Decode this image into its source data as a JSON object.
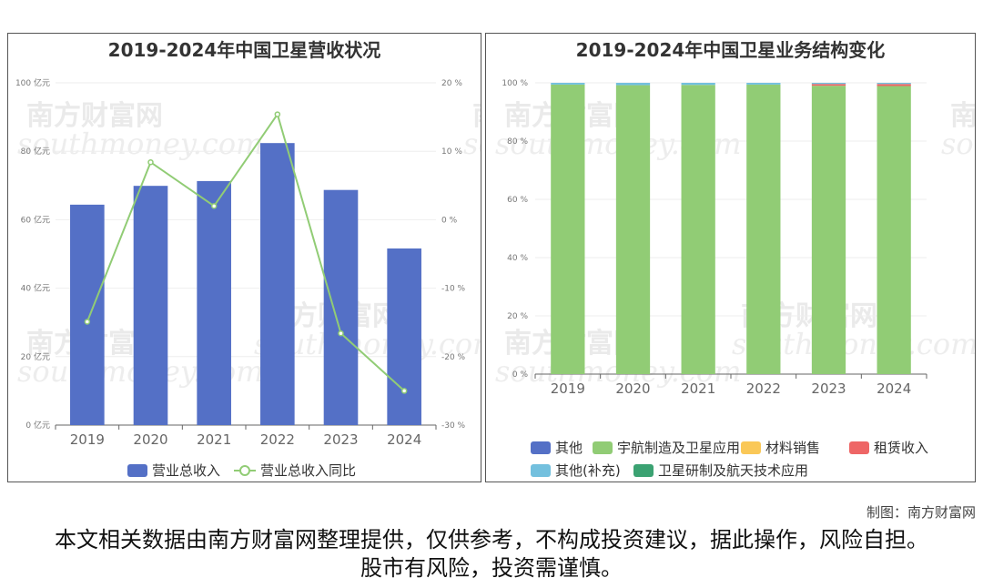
{
  "charts": {
    "left": {
      "title": "2019-2024年中国卫星营收状况",
      "left_ticks": [
        "0 亿元",
        "20 亿元",
        "40 亿元",
        "60 亿元",
        "80 亿元",
        "100 亿元"
      ],
      "right_ticks": [
        "-30 %",
        "-20 %",
        "-10 %",
        "0 %",
        "10 %",
        "20 %"
      ],
      "legend": [
        "营业总收入",
        "营业总收入同比"
      ]
    },
    "right": {
      "title": "2019-2024年中国卫星业务结构变化",
      "y_ticks": [
        "0 %",
        "20 %",
        "40 %",
        "60 %",
        "80 %",
        "100 %"
      ],
      "legend": [
        "其他",
        "宇航制造及卫星应用",
        "材料销售",
        "租赁收入",
        "其他(补充)",
        "卫星研制及航天技术应用"
      ]
    }
  },
  "chart_data": [
    {
      "type": "bar",
      "title": "2019-2024年中国卫星营收状况",
      "categories": [
        "2019",
        "2020",
        "2021",
        "2022",
        "2023",
        "2024"
      ],
      "series": [
        {
          "name": "营业总收入",
          "type": "bar",
          "axis": "left",
          "unit": "亿元",
          "values": [
            64.4,
            69.9,
            71.3,
            82.4,
            68.7,
            51.6
          ],
          "color": "#5470c6"
        },
        {
          "name": "营业总收入同比",
          "type": "line",
          "axis": "right",
          "unit": "%",
          "values": [
            -14.9,
            8.4,
            2.0,
            15.4,
            -16.6,
            -25.0
          ],
          "color": "#91cc75"
        }
      ],
      "ylim_left": [
        0,
        100
      ],
      "ylim_right": [
        -30,
        20
      ],
      "legend_position": "bottom",
      "grid": true
    },
    {
      "type": "bar",
      "stacked": true,
      "title": "2019-2024年中国卫星业务结构变化",
      "categories": [
        "2019",
        "2020",
        "2021",
        "2022",
        "2023",
        "2024"
      ],
      "series": [
        {
          "name": "其他",
          "color": "#5470c6",
          "values": [
            0,
            0,
            0,
            0,
            0,
            0
          ]
        },
        {
          "name": "宇航制造及卫星应用",
          "color": "#91cc75",
          "values": [
            99.4,
            99.2,
            99.3,
            99.4,
            99.0,
            98.9
          ]
        },
        {
          "name": "材料销售",
          "color": "#fac858",
          "values": [
            0,
            0,
            0,
            0,
            0,
            0
          ]
        },
        {
          "name": "租赁收入",
          "color": "#ee6666",
          "values": [
            0,
            0,
            0,
            0,
            0.6,
            0.7
          ]
        },
        {
          "name": "其他(补充)",
          "color": "#73c0de",
          "values": [
            0.6,
            0.8,
            0.7,
            0.6,
            0.4,
            0.4
          ]
        },
        {
          "name": "卫星研制及航天技术应用",
          "color": "#3ba272",
          "values": [
            0,
            0,
            0,
            0,
            0,
            0
          ]
        }
      ],
      "ylim": [
        0,
        100
      ],
      "unit": "%",
      "legend_position": "bottom",
      "grid": true
    }
  ],
  "watermark": {
    "cn": "南方财富网",
    "en": "southmoney.com"
  },
  "credit": "制图：南方财富网",
  "disclaimer": "本文相关数据由南方财富网整理提供，仅供参考，不构成投资建议，据此操作，风险自担。股市有风险，投资需谨慎。"
}
